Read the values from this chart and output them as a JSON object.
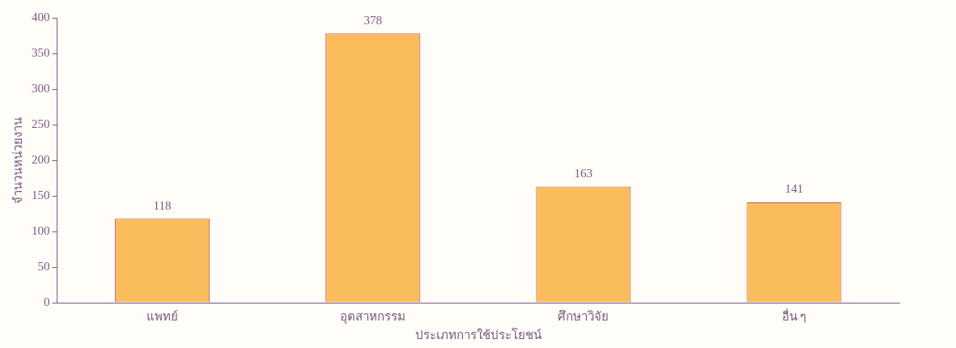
{
  "chart_data": {
    "type": "bar",
    "xlabel": "ประเภทการใช้ประโยชน์",
    "ylabel": "จำนวนหน่วยงาน",
    "categories": [
      "แพทย์",
      "อุตสาหกรรม",
      "ศึกษาวิจัย",
      "อื่น ๆ"
    ],
    "values": [
      118,
      378,
      163,
      141
    ],
    "color": "#fbbd5c",
    "ylim": [
      0,
      400
    ],
    "yticks": [
      0,
      50,
      100,
      150,
      200,
      250,
      300,
      350,
      400
    ],
    "grid": false,
    "data_labels": true
  }
}
